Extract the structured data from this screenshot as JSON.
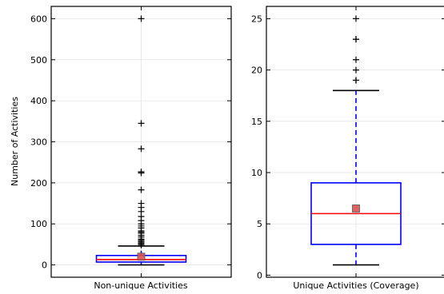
{
  "chart_data": [
    {
      "type": "box",
      "category": "Non-unique Activities",
      "ylabel": "Number of Activities",
      "ylim": [
        -30,
        630
      ],
      "yticks": [
        0,
        100,
        200,
        300,
        400,
        500,
        600
      ],
      "grid": true,
      "box": {
        "q1": 7,
        "median": 13,
        "q3": 23,
        "mean": 20,
        "whisker_low": 0,
        "whisker_high": 46
      },
      "outliers": [
        600,
        345,
        283,
        227,
        224,
        183,
        150,
        140,
        130,
        118,
        108,
        100,
        95,
        90,
        83,
        80,
        77,
        72,
        68,
        63,
        60,
        57,
        54,
        51,
        48
      ]
    },
    {
      "type": "box",
      "category": "Unique Activities (Coverage)",
      "ylabel": "",
      "ylim": [
        -0.2,
        26.2
      ],
      "yticks": [
        0,
        5,
        10,
        15,
        20,
        25
      ],
      "grid": true,
      "box": {
        "q1": 3,
        "median": 6,
        "q3": 9,
        "mean": 6.5,
        "whisker_low": 1,
        "whisker_high": 18
      },
      "outliers": [
        25,
        23,
        23,
        21,
        20,
        19,
        19
      ]
    }
  ],
  "colors": {
    "box": "#0000ff",
    "median": "#ff0000",
    "mean_marker": "#d9534f",
    "outlier": "#000000",
    "whisker_cap": "#000000"
  }
}
